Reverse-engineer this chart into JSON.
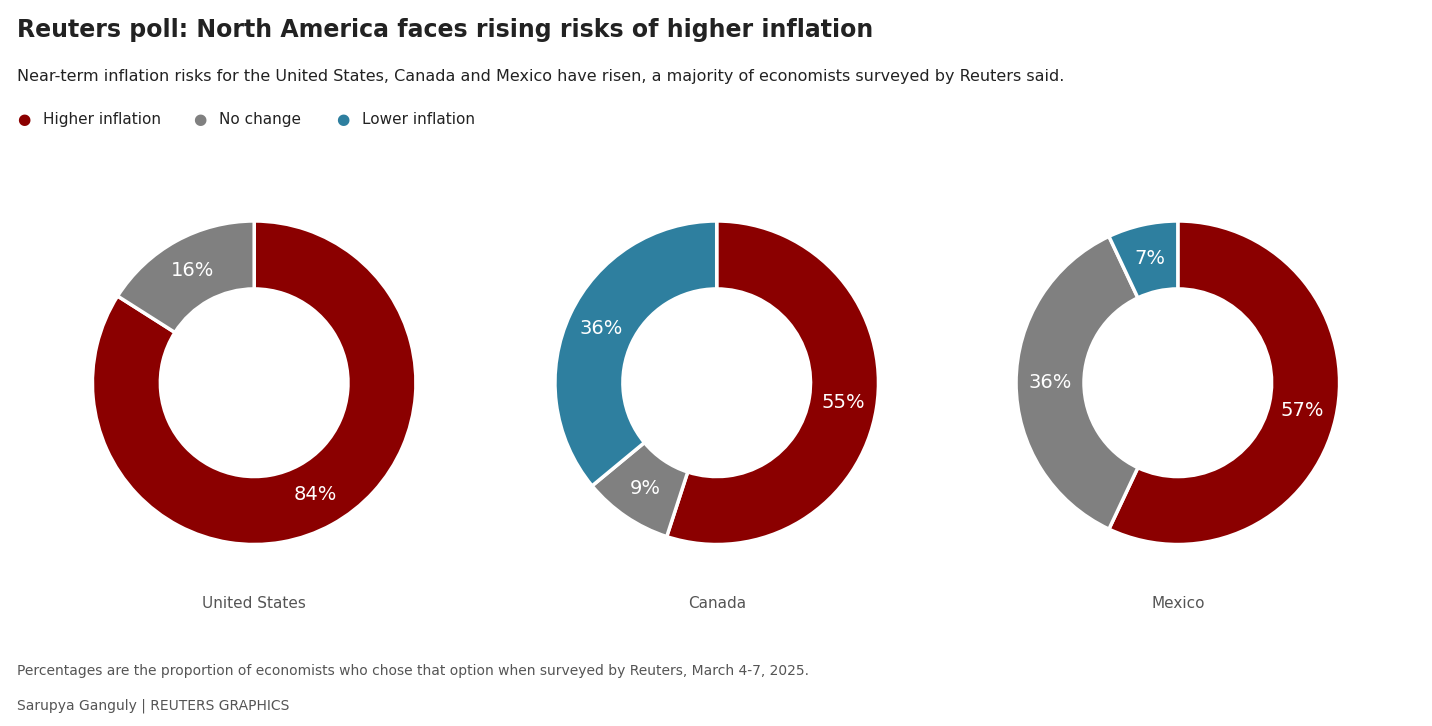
{
  "title": "Reuters poll: North America faces rising risks of higher inflation",
  "subtitle": "Near-term inflation risks for the United States, Canada and Mexico have risen, a majority of economists surveyed by Reuters said.",
  "footnote": "Percentages are the proportion of economists who chose that option when surveyed by Reuters, March 4-7, 2025.",
  "credit": "Sarupya Ganguly | REUTERS GRAPHICS",
  "colors": {
    "higher": "#8B0000",
    "no_change": "#808080",
    "lower": "#2E7F9F"
  },
  "charts": [
    {
      "label": "United States",
      "higher": 84,
      "no_change": 16,
      "lower": 0
    },
    {
      "label": "Canada",
      "higher": 55,
      "no_change": 9,
      "lower": 36
    },
    {
      "label": "Mexico",
      "higher": 57,
      "no_change": 36,
      "lower": 7
    }
  ],
  "background_color": "#FFFFFF",
  "text_color": "#222222",
  "gray_text": "#555555",
  "title_fontsize": 17,
  "subtitle_fontsize": 11.5,
  "legend_fontsize": 11,
  "pct_fontsize": 14,
  "country_fontsize": 11,
  "footnote_fontsize": 10,
  "donut_width": 0.42
}
